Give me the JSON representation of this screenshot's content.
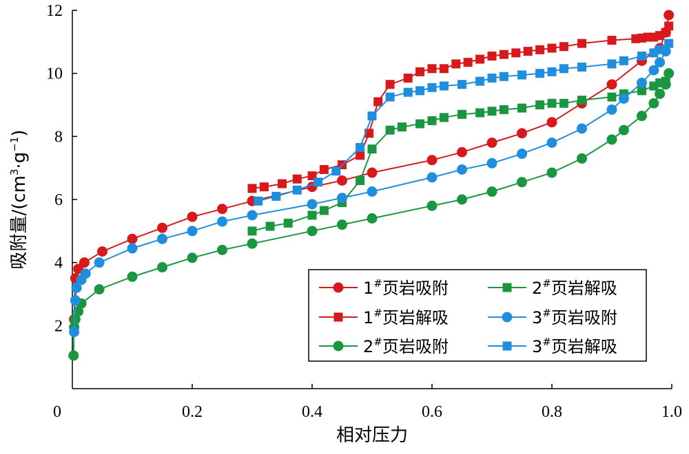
{
  "chart_data": {
    "type": "line",
    "xlabel": "相对压力",
    "ylabel": {
      "prefix": "吸附量/(cm",
      "sup1": "3",
      "mid": "·g",
      "sup2": "−1",
      "suffix": ")"
    },
    "xlim": [
      0,
      1.0
    ],
    "ylim": [
      0,
      12
    ],
    "xticks": [
      "0",
      "0.2",
      "0.4",
      "0.6",
      "0.8",
      "1.0"
    ],
    "yticks": [
      "2",
      "4",
      "6",
      "8",
      "10",
      "12"
    ],
    "grid": false,
    "legend_placement": "lower-right",
    "series": [
      {
        "name": "1#页岩吸附",
        "num": "1",
        "sup": "#",
        "label": "页岩吸附",
        "color": "#d7191c",
        "marker": "circle",
        "x": [
          0.003,
          0.005,
          0.01,
          0.02,
          0.05,
          0.1,
          0.15,
          0.2,
          0.25,
          0.3,
          0.4,
          0.45,
          0.5,
          0.6,
          0.65,
          0.7,
          0.75,
          0.8,
          0.85,
          0.9,
          0.95,
          0.98,
          0.99,
          0.995
        ],
        "y": [
          2.2,
          3.5,
          3.8,
          4.0,
          4.35,
          4.75,
          5.1,
          5.45,
          5.7,
          5.95,
          6.4,
          6.6,
          6.85,
          7.25,
          7.5,
          7.8,
          8.1,
          8.45,
          9.05,
          9.65,
          10.4,
          10.8,
          11.3,
          11.85
        ]
      },
      {
        "name": "1#页岩解吸",
        "num": "1",
        "sup": "#",
        "label": "页岩解吸",
        "color": "#d7191c",
        "marker": "square",
        "x": [
          0.995,
          0.99,
          0.98,
          0.97,
          0.96,
          0.95,
          0.94,
          0.9,
          0.85,
          0.82,
          0.8,
          0.78,
          0.76,
          0.74,
          0.72,
          0.7,
          0.68,
          0.66,
          0.64,
          0.62,
          0.6,
          0.58,
          0.56,
          0.53,
          0.51,
          0.495,
          0.48,
          0.45,
          0.42,
          0.4,
          0.375,
          0.35,
          0.32,
          0.3
        ],
        "y": [
          11.5,
          11.3,
          11.2,
          11.15,
          11.15,
          11.12,
          11.1,
          11.05,
          10.95,
          10.85,
          10.8,
          10.75,
          10.7,
          10.65,
          10.6,
          10.55,
          10.45,
          10.35,
          10.3,
          10.15,
          10.15,
          10.05,
          9.85,
          9.65,
          9.1,
          8.1,
          7.4,
          7.1,
          6.95,
          6.75,
          6.65,
          6.5,
          6.4,
          6.35
        ]
      },
      {
        "name": "2#页岩吸附",
        "num": "2",
        "sup": "#",
        "label": "页岩吸附",
        "color": "#1a9641",
        "marker": "circle",
        "x": [
          0.002,
          0.003,
          0.005,
          0.01,
          0.015,
          0.045,
          0.1,
          0.15,
          0.2,
          0.25,
          0.3,
          0.4,
          0.45,
          0.5,
          0.6,
          0.65,
          0.7,
          0.75,
          0.8,
          0.85,
          0.9,
          0.92,
          0.95,
          0.97,
          0.98,
          0.99,
          0.995
        ],
        "y": [
          1.05,
          1.95,
          2.2,
          2.45,
          2.7,
          3.15,
          3.55,
          3.85,
          4.15,
          4.4,
          4.6,
          5.0,
          5.2,
          5.4,
          5.8,
          6.0,
          6.25,
          6.55,
          6.85,
          7.3,
          7.9,
          8.2,
          8.65,
          9.05,
          9.35,
          9.65,
          10.0
        ]
      },
      {
        "name": "2#页岩解吸",
        "num": "2",
        "sup": "#",
        "label": "页岩解吸",
        "color": "#1a9641",
        "marker": "square",
        "x": [
          0.99,
          0.98,
          0.97,
          0.95,
          0.92,
          0.9,
          0.85,
          0.82,
          0.8,
          0.78,
          0.75,
          0.72,
          0.7,
          0.68,
          0.65,
          0.62,
          0.6,
          0.58,
          0.55,
          0.53,
          0.5,
          0.48,
          0.45,
          0.42,
          0.4,
          0.36,
          0.33,
          0.3
        ],
        "y": [
          9.75,
          9.7,
          9.6,
          9.45,
          9.35,
          9.25,
          9.15,
          9.05,
          9.05,
          9.0,
          8.9,
          8.85,
          8.8,
          8.75,
          8.7,
          8.6,
          8.5,
          8.4,
          8.3,
          8.2,
          7.6,
          6.6,
          5.9,
          5.65,
          5.5,
          5.25,
          5.15,
          5.0
        ]
      },
      {
        "name": "3#页岩吸附",
        "num": "3",
        "sup": "#",
        "label": "页岩吸附",
        "color": "#1f8fdd",
        "marker": "circle",
        "x": [
          0.003,
          0.005,
          0.007,
          0.015,
          0.022,
          0.045,
          0.1,
          0.15,
          0.2,
          0.25,
          0.3,
          0.4,
          0.45,
          0.5,
          0.6,
          0.65,
          0.7,
          0.75,
          0.8,
          0.85,
          0.9,
          0.92,
          0.95,
          0.97,
          0.98,
          0.99
        ],
        "y": [
          1.8,
          2.8,
          3.2,
          3.45,
          3.65,
          4.0,
          4.45,
          4.75,
          5.0,
          5.3,
          5.5,
          5.85,
          6.05,
          6.25,
          6.7,
          6.95,
          7.15,
          7.45,
          7.8,
          8.25,
          8.85,
          9.2,
          9.7,
          10.1,
          10.35,
          10.7
        ]
      },
      {
        "name": "3#页岩解吸",
        "num": "3",
        "sup": "#",
        "label": "页岩解吸",
        "color": "#1f8fdd",
        "marker": "square",
        "x": [
          0.995,
          0.98,
          0.97,
          0.95,
          0.92,
          0.9,
          0.85,
          0.82,
          0.8,
          0.78,
          0.75,
          0.72,
          0.7,
          0.68,
          0.65,
          0.62,
          0.6,
          0.58,
          0.56,
          0.53,
          0.5,
          0.48,
          0.44,
          0.41,
          0.375,
          0.34,
          0.31
        ],
        "y": [
          10.95,
          10.75,
          10.65,
          10.55,
          10.4,
          10.3,
          10.2,
          10.15,
          10.05,
          10.0,
          9.95,
          9.9,
          9.85,
          9.75,
          9.65,
          9.6,
          9.55,
          9.45,
          9.4,
          9.25,
          8.65,
          7.65,
          6.9,
          6.55,
          6.3,
          6.1,
          5.95
        ]
      }
    ]
  }
}
